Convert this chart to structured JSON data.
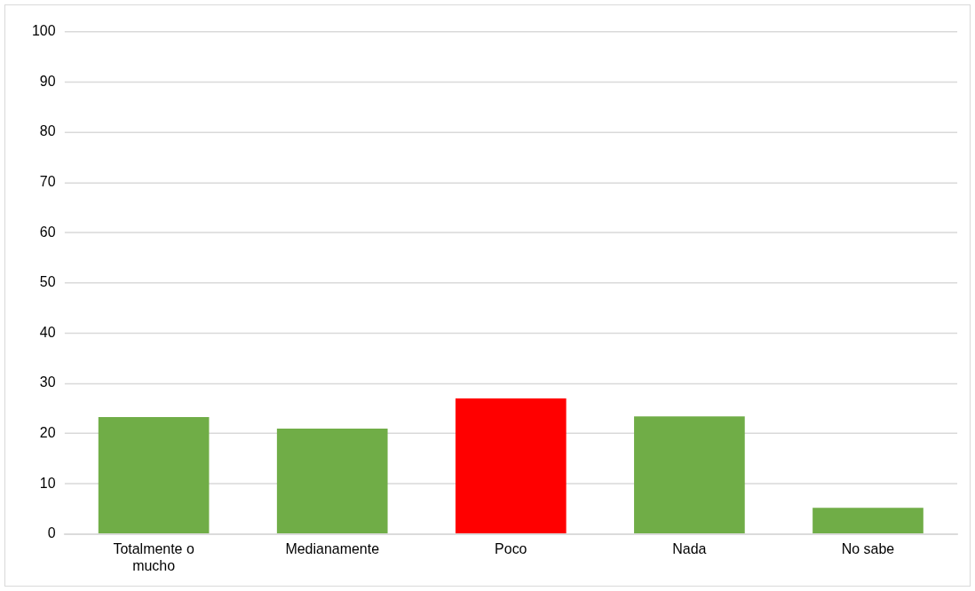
{
  "chart_data": {
    "type": "bar",
    "categories": [
      "Totalmente o mucho",
      "Medianamente",
      "Poco",
      "Nada",
      "No sabe"
    ],
    "values": [
      23.3,
      21.0,
      27.0,
      23.4,
      5.2
    ],
    "colors": [
      "#70ad47",
      "#70ad47",
      "#ff0000",
      "#70ad47",
      "#70ad47"
    ],
    "ylim": [
      0,
      100
    ],
    "yticks": [
      0,
      10,
      20,
      30,
      40,
      50,
      60,
      70,
      80,
      90,
      100
    ],
    "grid": "y",
    "legend": false
  }
}
